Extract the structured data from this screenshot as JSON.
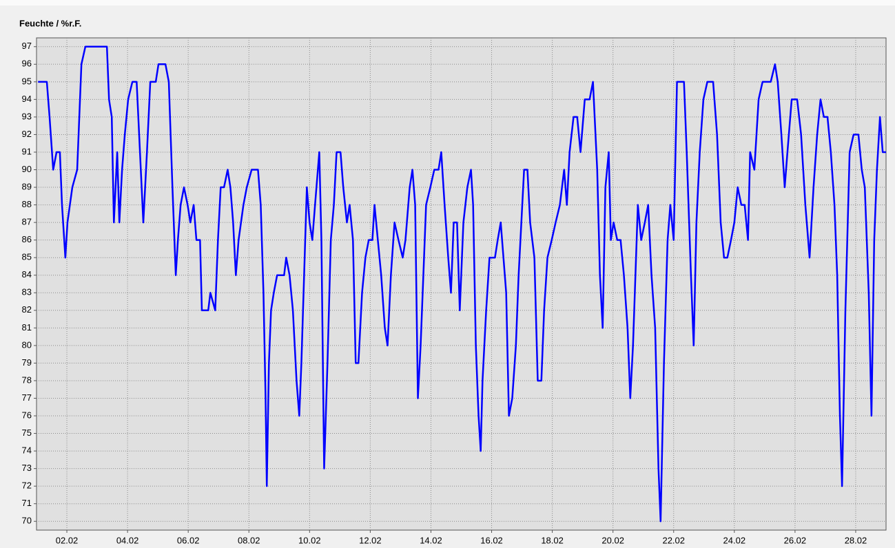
{
  "chart_data": {
    "type": "line",
    "title": "Feuchte / %r.F.",
    "x": [
      1.05,
      1.34,
      1.43,
      1.55,
      1.66,
      1.77,
      1.84,
      1.95,
      2.02,
      2.18,
      2.34,
      2.48,
      2.61,
      3.32,
      3.39,
      3.48,
      3.55,
      3.66,
      3.73,
      3.82,
      3.91,
      4.02,
      4.16,
      4.3,
      4.41,
      4.52,
      4.64,
      4.75,
      4.93,
      5.02,
      5.25,
      5.36,
      5.48,
      5.59,
      5.66,
      5.75,
      5.86,
      5.98,
      6.07,
      6.18,
      6.27,
      6.39,
      6.45,
      6.66,
      6.73,
      6.89,
      6.98,
      7.07,
      7.18,
      7.3,
      7.39,
      7.48,
      7.57,
      7.66,
      7.82,
      7.93,
      8.09,
      8.3,
      8.39,
      8.48,
      8.55,
      8.59,
      8.66,
      8.73,
      8.82,
      8.93,
      9.16,
      9.23,
      9.34,
      9.45,
      9.57,
      9.66,
      9.73,
      9.82,
      9.91,
      10.0,
      10.09,
      10.18,
      10.32,
      10.39,
      10.48,
      10.59,
      10.7,
      10.8,
      10.89,
      11.02,
      11.11,
      11.23,
      11.32,
      11.43,
      11.52,
      11.61,
      11.73,
      11.84,
      11.95,
      12.07,
      12.14,
      12.25,
      12.36,
      12.48,
      12.57,
      12.68,
      12.8,
      12.93,
      13.07,
      13.16,
      13.3,
      13.39,
      13.48,
      13.57,
      13.66,
      13.75,
      13.84,
      13.98,
      14.11,
      14.25,
      14.34,
      14.45,
      14.57,
      14.66,
      14.75,
      14.86,
      14.95,
      15.07,
      15.2,
      15.32,
      15.39,
      15.48,
      15.57,
      15.64,
      15.7,
      15.82,
      15.93,
      16.11,
      16.2,
      16.3,
      16.39,
      16.48,
      16.57,
      16.68,
      16.8,
      16.89,
      16.98,
      17.07,
      17.18,
      17.27,
      17.41,
      17.52,
      17.64,
      17.73,
      17.84,
      17.98,
      18.11,
      18.25,
      18.39,
      18.48,
      18.57,
      18.7,
      18.82,
      18.93,
      19.07,
      19.23,
      19.34,
      19.48,
      19.57,
      19.66,
      19.75,
      19.86,
      19.93,
      20.02,
      20.14,
      20.25,
      20.36,
      20.48,
      20.57,
      20.66,
      20.82,
      20.93,
      21.05,
      21.16,
      21.27,
      21.39,
      21.5,
      21.57,
      21.68,
      21.8,
      21.89,
      22.0,
      22.11,
      22.34,
      22.43,
      22.57,
      22.66,
      22.75,
      22.86,
      22.98,
      23.11,
      23.3,
      23.43,
      23.55,
      23.66,
      23.77,
      23.89,
      24.0,
      24.11,
      24.23,
      24.34,
      24.45,
      24.52,
      24.66,
      24.8,
      24.93,
      25.2,
      25.34,
      25.43,
      25.55,
      25.66,
      25.75,
      25.89,
      26.07,
      26.2,
      26.34,
      26.48,
      26.61,
      26.73,
      26.84,
      26.95,
      27.07,
      27.18,
      27.3,
      27.39,
      27.48,
      27.55,
      27.66,
      27.8,
      27.93,
      28.09,
      28.2,
      28.3,
      28.43,
      28.52,
      28.61,
      28.7,
      28.8,
      28.89,
      29.0
    ],
    "series": [
      {
        "color": "#0000ff",
        "values": [
          95,
          95,
          93,
          90,
          91,
          91,
          88,
          85,
          87,
          89,
          90,
          96,
          97,
          97,
          94,
          93,
          87,
          91,
          87,
          90,
          92,
          94,
          95,
          95,
          91,
          87,
          91,
          95,
          95,
          96,
          96,
          95,
          89,
          84,
          86,
          88,
          89,
          88,
          87,
          88,
          86,
          86,
          82,
          82,
          83,
          82,
          86,
          89,
          89,
          90,
          89,
          87,
          84,
          86,
          88,
          89,
          90,
          90,
          88,
          83,
          77,
          72,
          79,
          82,
          83,
          84,
          84,
          85,
          84,
          82,
          78,
          76,
          79,
          84,
          89,
          87,
          86,
          88,
          91,
          86,
          73,
          79,
          86,
          88,
          91,
          91,
          89,
          87,
          88,
          86,
          79,
          79,
          83,
          85,
          86,
          86,
          88,
          86,
          84,
          81,
          80,
          84,
          87,
          86,
          85,
          86,
          89,
          90,
          88,
          77,
          80,
          84,
          88,
          89,
          90,
          90,
          91,
          88,
          85,
          83,
          87,
          87,
          82,
          87,
          89,
          90,
          88,
          80,
          76,
          74,
          78,
          82,
          85,
          85,
          86,
          87,
          85,
          83,
          76,
          77,
          80,
          84,
          87,
          90,
          90,
          87,
          85,
          78,
          78,
          82,
          85,
          86,
          87,
          88,
          90,
          88,
          91,
          93,
          93,
          91,
          94,
          94,
          95,
          90,
          84,
          81,
          89,
          91,
          86,
          87,
          86,
          86,
          84,
          81,
          77,
          80,
          88,
          86,
          87,
          88,
          84,
          81,
          73,
          70,
          79,
          86,
          88,
          86,
          95,
          95,
          91,
          84,
          80,
          87,
          91,
          94,
          95,
          95,
          92,
          87,
          85,
          85,
          86,
          87,
          89,
          88,
          88,
          86,
          91,
          90,
          94,
          95,
          95,
          96,
          95,
          92,
          89,
          91,
          94,
          94,
          92,
          88,
          85,
          89,
          92,
          94,
          93,
          93,
          91,
          88,
          84,
          76,
          72,
          82,
          91,
          92,
          92,
          90,
          89,
          83,
          76,
          86,
          90,
          93,
          91,
          91
        ]
      }
    ],
    "xlim": [
      1,
      29
    ],
    "xticks": [
      {
        "value": 2,
        "label": "02.02"
      },
      {
        "value": 4,
        "label": "04.02"
      },
      {
        "value": 6,
        "label": "06.02"
      },
      {
        "value": 8,
        "label": "08.02"
      },
      {
        "value": 10,
        "label": "10.02"
      },
      {
        "value": 12,
        "label": "12.02"
      },
      {
        "value": 14,
        "label": "14.02"
      },
      {
        "value": 16,
        "label": "16.02"
      },
      {
        "value": 18,
        "label": "18.02"
      },
      {
        "value": 20,
        "label": "20.02"
      },
      {
        "value": 22,
        "label": "22.02"
      },
      {
        "value": 24,
        "label": "24.02"
      },
      {
        "value": 26,
        "label": "26.02"
      },
      {
        "value": 28,
        "label": "28.02"
      }
    ],
    "ylim": [
      69.5,
      97.5
    ],
    "yticks": [
      70,
      71,
      72,
      73,
      74,
      75,
      76,
      77,
      78,
      79,
      80,
      81,
      82,
      83,
      84,
      85,
      86,
      87,
      88,
      89,
      90,
      91,
      92,
      93,
      94,
      95,
      96,
      97
    ],
    "grid": true
  }
}
